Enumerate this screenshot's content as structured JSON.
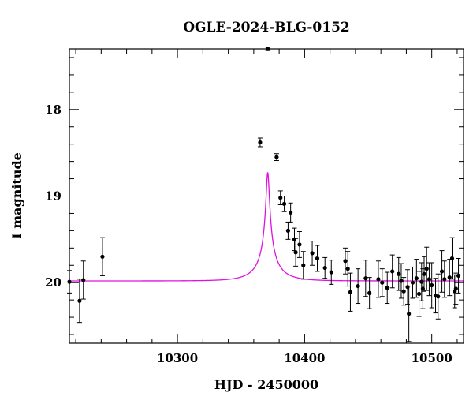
{
  "chart_data": {
    "type": "scatter",
    "title": "OGLE-2024-BLG-0152",
    "xlabel": "HJD - 2450000",
    "ylabel": "I magnitude",
    "xlim": [
      10215,
      10525
    ],
    "ylim": [
      20.7,
      17.3
    ],
    "y_inverted": true,
    "x_ticks": [
      10300,
      10400,
      10500
    ],
    "y_ticks": [
      18,
      19,
      20
    ],
    "x_minor_step": 20,
    "y_minor_step": 0.2,
    "grid": false,
    "colors": {
      "model": "#e010e0",
      "points": "#000000"
    },
    "model": {
      "t0": 10371,
      "u0": 0.06,
      "tE": 20,
      "baseline": 19.98,
      "flux_amp": 2.31
    },
    "series": [
      {
        "type": "errorbar",
        "x": [
          10215,
          10223,
          10226,
          10241,
          10365,
          10371,
          10378,
          10381,
          10384,
          10387,
          10389,
          10392,
          10393,
          10396,
          10399,
          10406,
          10410,
          10416,
          10421,
          10432,
          10434,
          10436,
          10442,
          10448,
          10451,
          10458,
          10461,
          10465,
          10469,
          10474,
          10476,
          10478,
          10481,
          10482,
          10485,
          10488,
          10490,
          10492,
          10493,
          10494,
          10496,
          10498,
          10500,
          10503,
          10505,
          10508,
          10510,
          10514,
          10516,
          10518,
          10519,
          10521
        ],
        "y": [
          19.99,
          20.21,
          19.97,
          19.7,
          18.38,
          17.3,
          18.55,
          19.02,
          19.09,
          19.4,
          19.19,
          19.5,
          19.65,
          19.56,
          19.8,
          19.66,
          19.72,
          19.83,
          19.88,
          19.75,
          19.84,
          20.11,
          20.04,
          19.95,
          20.12,
          19.96,
          20.0,
          20.06,
          19.87,
          19.9,
          19.98,
          20.1,
          20.05,
          20.36,
          20.0,
          19.95,
          20.13,
          19.99,
          20.07,
          19.9,
          19.84,
          19.96,
          20.03,
          20.15,
          20.16,
          19.87,
          19.96,
          19.94,
          19.72,
          20.1,
          20.07,
          19.92
        ],
        "yerr": [
          0.13,
          0.25,
          0.22,
          0.22,
          0.05,
          0.02,
          0.04,
          0.08,
          0.09,
          0.1,
          0.11,
          0.13,
          0.16,
          0.15,
          0.16,
          0.14,
          0.15,
          0.12,
          0.14,
          0.15,
          0.2,
          0.22,
          0.2,
          0.21,
          0.18,
          0.21,
          0.16,
          0.18,
          0.19,
          0.19,
          0.2,
          0.16,
          0.2,
          0.32,
          0.18,
          0.22,
          0.26,
          0.22,
          0.23,
          0.2,
          0.25,
          0.19,
          0.26,
          0.2,
          0.26,
          0.24,
          0.21,
          0.21,
          0.24,
          0.19,
          0.18,
          0.2
        ]
      }
    ]
  }
}
